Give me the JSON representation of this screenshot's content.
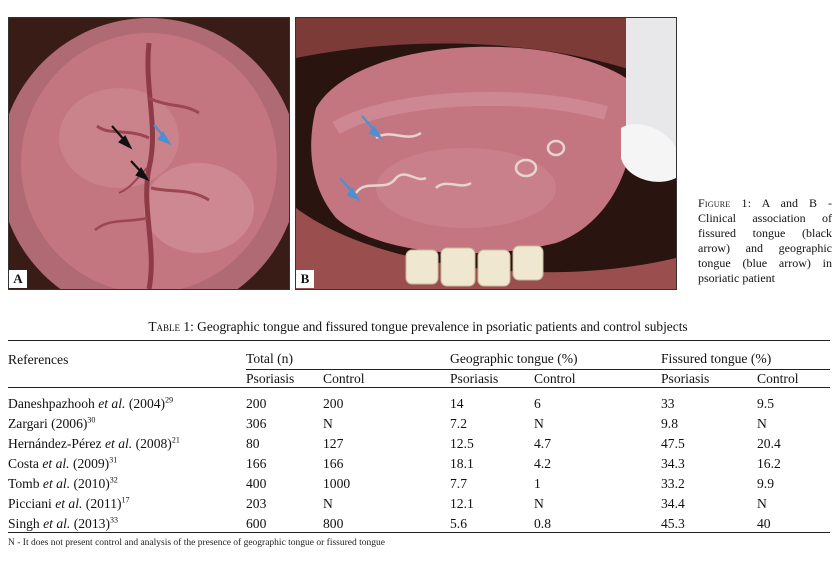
{
  "figure": {
    "panel_a_label": "A",
    "panel_b_label": "B",
    "caption_lead": "Figure 1:",
    "caption_text": " A and B - Clinical association of fissured tongue (black arrow) and geographic tongue (blue arrow) in psoriatic patient",
    "colors": {
      "tongue": "#c47680",
      "tongue_dark": "#8e3b47",
      "black_arrow": "#111111",
      "blue_arrow": "#4f8fd0",
      "teeth": "#efe7d0",
      "background": "#2a1410"
    }
  },
  "table": {
    "title_lead": "Table 1:",
    "title_text": " Geographic tongue and fissured tongue prevalence in psoriatic patients and control subjects",
    "headers": {
      "references": "References",
      "total": "Total (n)",
      "geographic": "Geographic tongue (%)",
      "fissured": "Fissured tongue (%)",
      "psoriasis": "Psoriasis",
      "control": "Control"
    },
    "rows": [
      {
        "author": "Daneshpazhooh",
        "etal": " et al.",
        "year": " (2004)",
        "ref": "29",
        "total_p": "200",
        "total_c": "200",
        "geo_p": "14",
        "geo_c": "6",
        "fis_p": "33",
        "fis_c": "9.5"
      },
      {
        "author": "Zargari",
        "etal": "",
        "year": " (2006)",
        "ref": "30",
        "total_p": "306",
        "total_c": "N",
        "geo_p": "7.2",
        "geo_c": "N",
        "fis_p": "9.8",
        "fis_c": "N"
      },
      {
        "author": "Hernández-Pérez",
        "etal": " et al.",
        "year": " (2008)",
        "ref": "21",
        "total_p": "80",
        "total_c": "127",
        "geo_p": "12.5",
        "geo_c": "4.7",
        "fis_p": "47.5",
        "fis_c": "20.4"
      },
      {
        "author": "Costa",
        "etal": " et al.",
        "year": " (2009)",
        "ref": "31",
        "total_p": "166",
        "total_c": "166",
        "geo_p": "18.1",
        "geo_c": "4.2",
        "fis_p": "34.3",
        "fis_c": "16.2"
      },
      {
        "author": "Tomb",
        "etal": " et al.",
        "year": " (2010)",
        "ref": "32",
        "total_p": "400",
        "total_c": "1000",
        "geo_p": "7.7",
        "geo_c": "1",
        "fis_p": "33.2",
        "fis_c": "9.9"
      },
      {
        "author": "Picciani",
        "etal": " et al.",
        "year": " (2011)",
        "ref": "17",
        "total_p": "203",
        "total_c": "N",
        "geo_p": "12.1",
        "geo_c": "N",
        "fis_p": "34.4",
        "fis_c": "N"
      },
      {
        "author": "Singh",
        "etal": " et al.",
        "year": " (2013)",
        "ref": "33",
        "total_p": "600",
        "total_c": "800",
        "geo_p": "5.6",
        "geo_c": "0.8",
        "fis_p": "45.3",
        "fis_c": "40"
      }
    ],
    "footnote": "N - It does not present control and analysis of the presence of geographic tongue or fissured tongue"
  }
}
